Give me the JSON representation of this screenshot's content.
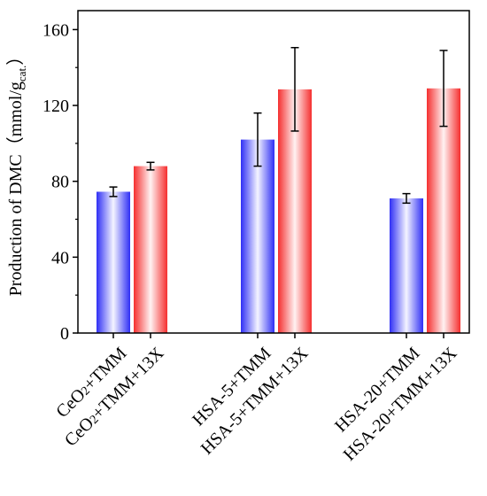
{
  "chart_data": {
    "type": "bar",
    "title": "",
    "xlabel": "",
    "ylabel": "Production of DMC（mmol/g",
    "ylabel_sub": "cat.",
    "ylabel_end": "）",
    "ylim": [
      0,
      170
    ],
    "yticks": [
      0,
      40,
      80,
      120,
      160
    ],
    "grid": false,
    "legend": "none",
    "bar_style": "vertical gradient (white center)",
    "colors": {
      "TMM": "#2f2ff5",
      "TMM+13X": "#f52f2f"
    },
    "bars": [
      {
        "label": "CeO2+TMM",
        "label_parts": [
          "CeO",
          "2",
          "+TMM"
        ],
        "group": "TMM",
        "value": 74.5,
        "error": 2.5
      },
      {
        "label": "CeO2+TMM+13X",
        "label_parts": [
          "CeO",
          "2",
          "+TMM+13X"
        ],
        "group": "TMM+13X",
        "value": 88,
        "error": 2
      },
      {
        "label": "HSA-5+TMM",
        "label_parts": [
          "HSA-5+TMM",
          "",
          ""
        ],
        "group": "TMM",
        "value": 102,
        "error": 14
      },
      {
        "label": "HSA-5+TMM+13X",
        "label_parts": [
          "HSA-5+TMM+13X",
          "",
          ""
        ],
        "group": "TMM+13X",
        "value": 128.5,
        "error": 22
      },
      {
        "label": "HSA-20+TMM",
        "label_parts": [
          "HSA-20+TMM",
          "",
          ""
        ],
        "group": "TMM",
        "value": 71,
        "error": 2.5
      },
      {
        "label": "HSA-20+TMM+13X",
        "label_parts": [
          "HSA-20+TMM+13X",
          "",
          ""
        ],
        "group": "TMM+13X",
        "value": 129,
        "error": 20
      }
    ]
  }
}
